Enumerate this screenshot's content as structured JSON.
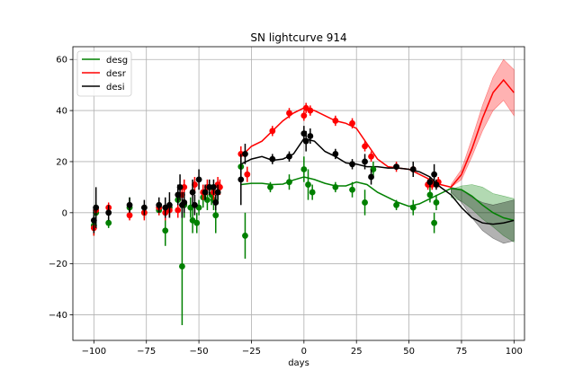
{
  "chart_data": {
    "type": "scatter",
    "title": "SN lightcurve 914",
    "xlabel": "days",
    "ylabel": "",
    "xlim": [
      -110,
      105
    ],
    "ylim": [
      -50,
      65
    ],
    "xticks": [
      -100,
      -75,
      -50,
      -25,
      0,
      25,
      50,
      75,
      100
    ],
    "yticks": [
      -40,
      -20,
      0,
      20,
      40,
      60
    ],
    "grid": true,
    "legend": {
      "placement": "top-left",
      "entries": [
        "desg",
        "desr",
        "desi"
      ]
    },
    "series": [
      {
        "name": "desg",
        "color": "#008000",
        "points": [
          {
            "x": -100,
            "y": -5,
            "err": 4
          },
          {
            "x": -99,
            "y": 0,
            "err": 4
          },
          {
            "x": -93,
            "y": -4,
            "err": 2
          },
          {
            "x": -83,
            "y": 2,
            "err": 4
          },
          {
            "x": -76,
            "y": 0,
            "err": 2
          },
          {
            "x": -69,
            "y": 1,
            "err": 2
          },
          {
            "x": -66,
            "y": -7,
            "err": 6
          },
          {
            "x": -64,
            "y": 2,
            "err": 3
          },
          {
            "x": -60,
            "y": 5,
            "err": 5
          },
          {
            "x": -58,
            "y": -21,
            "err": 23
          },
          {
            "x": -57,
            "y": 3,
            "err": 5
          },
          {
            "x": -54,
            "y": 2,
            "err": 4
          },
          {
            "x": -53,
            "y": -3,
            "err": 5
          },
          {
            "x": -51,
            "y": -4,
            "err": 4
          },
          {
            "x": -50,
            "y": 2,
            "err": 3
          },
          {
            "x": -48,
            "y": 6,
            "err": 4
          },
          {
            "x": -46,
            "y": 5,
            "err": 4
          },
          {
            "x": -44,
            "y": 7,
            "err": 4
          },
          {
            "x": -43,
            "y": 5,
            "err": 4
          },
          {
            "x": -42,
            "y": -1,
            "err": 7
          },
          {
            "x": -41,
            "y": 8,
            "err": 4
          },
          {
            "x": -30,
            "y": 18,
            "err": 4
          },
          {
            "x": -28,
            "y": -9,
            "err": 9
          },
          {
            "x": -16,
            "y": 10,
            "err": 2
          },
          {
            "x": -7,
            "y": 12,
            "err": 3
          },
          {
            "x": 0,
            "y": 17,
            "err": 5
          },
          {
            "x": 2,
            "y": 11,
            "err": 6
          },
          {
            "x": 4,
            "y": 8,
            "err": 3
          },
          {
            "x": 15,
            "y": 10,
            "err": 2
          },
          {
            "x": 23,
            "y": 9,
            "err": 3
          },
          {
            "x": 29,
            "y": 4,
            "err": 5
          },
          {
            "x": 33,
            "y": 17,
            "err": 3
          },
          {
            "x": 44,
            "y": 3,
            "err": 2
          },
          {
            "x": 52,
            "y": 2,
            "err": 3
          },
          {
            "x": 60,
            "y": 7,
            "err": 3
          },
          {
            "x": 62,
            "y": -4,
            "err": 4
          },
          {
            "x": 63,
            "y": 4,
            "err": 3
          }
        ],
        "model": {
          "x": [
            -30,
            -25,
            -20,
            -15,
            -10,
            -5,
            0,
            5,
            10,
            15,
            20,
            25,
            30,
            35,
            40,
            45,
            50,
            55,
            60,
            65,
            70,
            75,
            80,
            85,
            90,
            95,
            100
          ],
          "y": [
            11,
            11.5,
            11.5,
            11,
            11.2,
            12.8,
            14,
            13,
            11.5,
            10.5,
            10.5,
            12,
            11,
            8,
            6,
            4,
            2.5,
            3.5,
            5.5,
            7.5,
            9.5,
            9,
            6.5,
            3,
            0,
            -2,
            -3
          ],
          "band_from": 66,
          "band_lo": [
            6,
            4.5,
            1.5,
            -2.5,
            -5.5,
            -9,
            -11.5,
            -13
          ],
          "band_hi": [
            9,
            10.5,
            11,
            10,
            7.5,
            6.5,
            5.5,
            5
          ]
        }
      },
      {
        "name": "desr",
        "color": "#ff0000",
        "points": [
          {
            "x": -100,
            "y": -6,
            "err": 3
          },
          {
            "x": -99,
            "y": 1,
            "err": 2
          },
          {
            "x": -93,
            "y": 2,
            "err": 2
          },
          {
            "x": -83,
            "y": -1,
            "err": 2
          },
          {
            "x": -76,
            "y": 0,
            "err": 3
          },
          {
            "x": -69,
            "y": 2,
            "err": 3
          },
          {
            "x": -66,
            "y": 0,
            "err": 3
          },
          {
            "x": -64,
            "y": 1,
            "err": 3
          },
          {
            "x": -60,
            "y": 1,
            "err": 3
          },
          {
            "x": -58,
            "y": 7,
            "err": 3
          },
          {
            "x": -57,
            "y": 10,
            "err": 3
          },
          {
            "x": -52,
            "y": 11,
            "err": 3
          },
          {
            "x": -48,
            "y": 8,
            "err": 3
          },
          {
            "x": -46,
            "y": 10,
            "err": 3
          },
          {
            "x": -43,
            "y": 8,
            "err": 3
          },
          {
            "x": -41,
            "y": 11,
            "err": 3
          },
          {
            "x": -40,
            "y": 10,
            "err": 3
          },
          {
            "x": -30,
            "y": 23,
            "err": 3
          },
          {
            "x": -27,
            "y": 15,
            "err": 3
          },
          {
            "x": -15,
            "y": 32,
            "err": 2
          },
          {
            "x": -7,
            "y": 39,
            "err": 2
          },
          {
            "x": 0,
            "y": 38,
            "err": 2
          },
          {
            "x": 1,
            "y": 41,
            "err": 2
          },
          {
            "x": 3,
            "y": 40,
            "err": 2
          },
          {
            "x": 15,
            "y": 36,
            "err": 2
          },
          {
            "x": 23,
            "y": 35,
            "err": 2
          },
          {
            "x": 29,
            "y": 26,
            "err": 2
          },
          {
            "x": 32,
            "y": 22,
            "err": 2
          },
          {
            "x": 44,
            "y": 18,
            "err": 2
          },
          {
            "x": 52,
            "y": 17,
            "err": 2
          },
          {
            "x": 59,
            "y": 11,
            "err": 2
          },
          {
            "x": 61,
            "y": 11,
            "err": 2
          },
          {
            "x": 64,
            "y": 12,
            "err": 2
          }
        ],
        "model": {
          "x": [
            -30,
            -25,
            -20,
            -15,
            -10,
            -5,
            0,
            5,
            10,
            15,
            20,
            25,
            30,
            35,
            40,
            45,
            50,
            55,
            60,
            65,
            70,
            75,
            80,
            85,
            90,
            95,
            100
          ],
          "y": [
            22,
            26,
            28,
            32,
            36,
            39,
            41,
            40,
            38,
            36,
            35,
            33,
            27,
            21,
            18,
            17.5,
            17,
            15,
            13,
            11,
            10,
            15,
            25,
            37,
            47,
            52,
            47
          ],
          "band_from": 66,
          "band_lo": [
            10,
            13,
            22,
            32,
            40,
            44,
            38
          ],
          "band_hi": [
            11,
            17,
            29,
            42,
            53,
            60,
            56
          ]
        }
      },
      {
        "name": "desi",
        "color": "#000000",
        "points": [
          {
            "x": -100,
            "y": -3,
            "err": 5
          },
          {
            "x": -99,
            "y": 2,
            "err": 8
          },
          {
            "x": -93,
            "y": 0,
            "err": 3
          },
          {
            "x": -83,
            "y": 3,
            "err": 3
          },
          {
            "x": -76,
            "y": 2,
            "err": 3
          },
          {
            "x": -69,
            "y": 3,
            "err": 3
          },
          {
            "x": -66,
            "y": 2,
            "err": 4
          },
          {
            "x": -64,
            "y": 3,
            "err": 5
          },
          {
            "x": -60,
            "y": 7,
            "err": 4
          },
          {
            "x": -59,
            "y": 10,
            "err": 5
          },
          {
            "x": -58,
            "y": 3,
            "err": 5
          },
          {
            "x": -57,
            "y": 4,
            "err": 4
          },
          {
            "x": -53,
            "y": 8,
            "err": 5
          },
          {
            "x": -52,
            "y": 3,
            "err": 4
          },
          {
            "x": -50,
            "y": 13,
            "err": 4
          },
          {
            "x": -47,
            "y": 8,
            "err": 3
          },
          {
            "x": -45,
            "y": 10,
            "err": 3
          },
          {
            "x": -43,
            "y": 10,
            "err": 3
          },
          {
            "x": -42,
            "y": 4,
            "err": 3
          },
          {
            "x": -41,
            "y": 8,
            "err": 3
          },
          {
            "x": -30,
            "y": 13,
            "err": 10
          },
          {
            "x": -28,
            "y": 23,
            "err": 4
          },
          {
            "x": -15,
            "y": 21,
            "err": 2
          },
          {
            "x": -7,
            "y": 22,
            "err": 2
          },
          {
            "x": 0,
            "y": 31,
            "err": 3
          },
          {
            "x": 1,
            "y": 28,
            "err": 4
          },
          {
            "x": 3,
            "y": 30,
            "err": 3
          },
          {
            "x": 15,
            "y": 23,
            "err": 2
          },
          {
            "x": 23,
            "y": 19,
            "err": 2
          },
          {
            "x": 29,
            "y": 20,
            "err": 3
          },
          {
            "x": 32,
            "y": 14,
            "err": 3
          },
          {
            "x": 44,
            "y": 18,
            "err": 1
          },
          {
            "x": 52,
            "y": 17,
            "err": 3
          },
          {
            "x": 60,
            "y": 12,
            "err": 2
          },
          {
            "x": 62,
            "y": 15,
            "err": 4
          },
          {
            "x": 63,
            "y": 11,
            "err": 2
          }
        ],
        "model": {
          "x": [
            -30,
            -25,
            -20,
            -15,
            -10,
            -5,
            0,
            5,
            10,
            15,
            20,
            25,
            30,
            35,
            40,
            45,
            50,
            55,
            60,
            65,
            70,
            75,
            80,
            85,
            90,
            95,
            100
          ],
          "y": [
            19,
            21,
            22,
            20.5,
            21,
            23,
            29,
            28,
            24,
            22,
            19.5,
            19,
            18,
            18,
            17.5,
            17.5,
            17,
            16,
            14,
            10,
            7,
            2,
            -2,
            -4,
            -4.5,
            -4,
            -3
          ],
          "band_from": 66,
          "band_lo": [
            8,
            4,
            -2,
            -7,
            -10,
            -12,
            -11,
            -11
          ],
          "band_hi": [
            10,
            9,
            6,
            4,
            3,
            4,
            5,
            6
          ]
        }
      }
    ]
  }
}
